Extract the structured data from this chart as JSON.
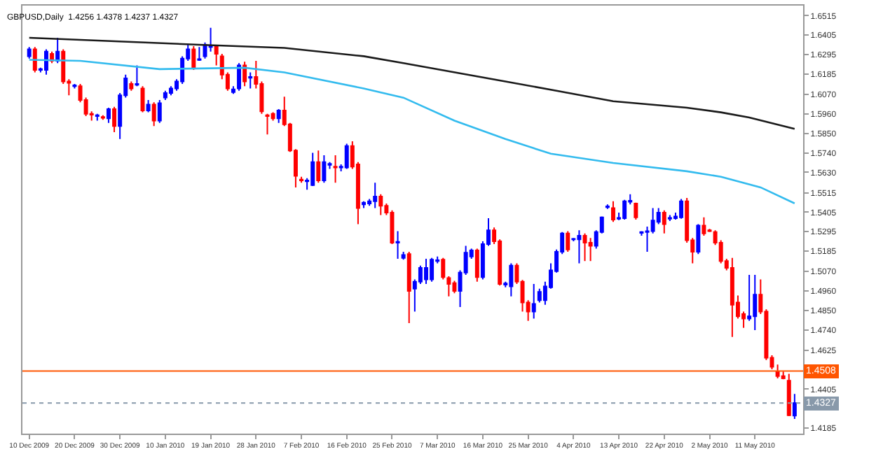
{
  "chart_data": {
    "type": "candlestick",
    "title": "GBPUSD,Daily  1.4256 1.4378 1.4237 1.4327",
    "categories": [
      "10 Dec 2009",
      null,
      null,
      null,
      null,
      null,
      null,
      null,
      "20 Dec 2009",
      null,
      null,
      null,
      null,
      null,
      null,
      null,
      "30 Dec 2009",
      null,
      null,
      null,
      null,
      null,
      null,
      null,
      "10 Jan 2010",
      null,
      null,
      null,
      null,
      null,
      null,
      null,
      "19 Jan 2010",
      null,
      null,
      null,
      null,
      null,
      null,
      null,
      "28 Jan 2010",
      null,
      null,
      null,
      null,
      null,
      null,
      null,
      "7 Feb 2010",
      null,
      null,
      null,
      null,
      null,
      null,
      null,
      "16 Feb 2010",
      null,
      null,
      null,
      null,
      null,
      null,
      null,
      "25 Feb 2010",
      null,
      null,
      null,
      null,
      null,
      null,
      null,
      "7 Mar 2010",
      null,
      null,
      null,
      null,
      null,
      null,
      null,
      "16 Mar 2010",
      null,
      null,
      null,
      null,
      null,
      null,
      null,
      "25 Mar 2010",
      null,
      null,
      null,
      null,
      null,
      null,
      null,
      "4 Apr 2010",
      null,
      null,
      null,
      null,
      null,
      null,
      null,
      "13 Apr 2010",
      null,
      null,
      null,
      null,
      null,
      null,
      null,
      "22 Apr 2010",
      null,
      null,
      null,
      null,
      null,
      null,
      null,
      "2 May 2010",
      null,
      null,
      null,
      null,
      null,
      null,
      null,
      "11 May 2010",
      null,
      null,
      null,
      null,
      null,
      null,
      null
    ],
    "ohlc": [
      [
        1.6286,
        1.6338,
        1.6273,
        1.6325
      ],
      [
        1.6325,
        1.6338,
        1.6195,
        1.6208
      ],
      [
        1.6208,
        1.6221,
        1.6195,
        1.6213
      ],
      [
        1.6208,
        1.6325,
        1.6182,
        1.6312
      ],
      [
        1.6299,
        1.6312,
        1.6247,
        1.626
      ],
      [
        1.626,
        1.639,
        1.6247,
        1.6312
      ],
      [
        1.6312,
        1.6325,
        1.613,
        1.6143
      ],
      [
        1.6143,
        1.6156,
        1.6065,
        1.6135
      ],
      [
        1.6117,
        1.613,
        1.6104,
        1.6122
      ],
      [
        1.6117,
        1.613,
        1.6026,
        1.6039
      ],
      [
        1.6039,
        1.6052,
        1.5948,
        1.5961
      ],
      [
        1.5961,
        1.5974,
        1.5922,
        1.5956
      ],
      [
        1.5948,
        1.5961,
        1.5922,
        1.5953
      ],
      [
        1.5943,
        1.5953,
        1.5927,
        1.5938
      ],
      [
        1.5935,
        1.5995,
        1.5909,
        1.5987
      ],
      [
        1.5987,
        1.6,
        1.5857,
        1.5891
      ],
      [
        1.5891,
        1.6078,
        1.5818,
        1.6065
      ],
      [
        1.6065,
        1.6182,
        1.6052,
        1.6161
      ],
      [
        1.613,
        1.6143,
        1.6091,
        1.6104
      ],
      [
        1.6125,
        1.6234,
        1.6117,
        1.613
      ],
      [
        1.6104,
        1.6117,
        1.5969,
        1.5979
      ],
      [
        1.5979,
        1.6039,
        1.5969,
        1.6013
      ],
      [
        1.6013,
        1.6026,
        1.5891,
        1.5922
      ],
      [
        1.5922,
        1.6039,
        1.5909,
        1.6021
      ],
      [
        1.6052,
        1.6091,
        1.6039,
        1.6078
      ],
      [
        1.6078,
        1.6117,
        1.6065,
        1.6104
      ],
      [
        1.6104,
        1.6156,
        1.6091,
        1.6143
      ],
      [
        1.6143,
        1.6286,
        1.613,
        1.6273
      ],
      [
        1.6273,
        1.6351,
        1.626,
        1.6325
      ],
      [
        1.6325,
        1.6343,
        1.6208,
        1.6221
      ],
      [
        1.6265,
        1.6338,
        1.626,
        1.627
      ],
      [
        1.6286,
        1.6364,
        1.6273,
        1.6351
      ],
      [
        1.6338,
        1.6447,
        1.6312,
        1.6343
      ],
      [
        1.6343,
        1.6351,
        1.6234,
        1.6299
      ],
      [
        1.6286,
        1.6299,
        1.6156,
        1.6182
      ],
      [
        1.6182,
        1.6195,
        1.6091,
        1.6104
      ],
      [
        1.6083,
        1.6117,
        1.6073,
        1.6099
      ],
      [
        1.6104,
        1.6247,
        1.6091,
        1.6234
      ],
      [
        1.6234,
        1.6255,
        1.6117,
        1.6143
      ],
      [
        1.6164,
        1.6195,
        1.6104,
        1.6169
      ],
      [
        1.6169,
        1.626,
        1.6104,
        1.613
      ],
      [
        1.613,
        1.6143,
        1.5961,
        1.5974
      ],
      [
        1.5953,
        1.5961,
        1.5844,
        1.5948
      ],
      [
        1.5961,
        1.5969,
        1.5922,
        1.5935
      ],
      [
        1.5935,
        1.5987,
        1.5909,
        1.5979
      ],
      [
        1.5979,
        1.6057,
        1.5891,
        1.5901
      ],
      [
        1.5901,
        1.5909,
        1.5745,
        1.5753
      ],
      [
        1.5753,
        1.5761,
        1.5545,
        1.561
      ],
      [
        1.5589,
        1.5605,
        1.5571,
        1.5584
      ],
      [
        1.5579,
        1.5597,
        1.5532,
        1.5584
      ],
      [
        1.5558,
        1.574,
        1.5553,
        1.5688
      ],
      [
        1.5688,
        1.5753,
        1.5571,
        1.5584
      ],
      [
        1.5584,
        1.5727,
        1.5571,
        1.5688
      ],
      [
        1.5672,
        1.5688,
        1.5649,
        1.5678
      ],
      [
        1.5662,
        1.5727,
        1.5571,
        1.5657
      ],
      [
        1.5657,
        1.5675,
        1.5636,
        1.5662
      ],
      [
        1.5657,
        1.5792,
        1.5649,
        1.5779
      ],
      [
        1.5779,
        1.5805,
        1.5649,
        1.5662
      ],
      [
        1.5675,
        1.5688,
        1.5337,
        1.5428
      ],
      [
        1.5449,
        1.5467,
        1.5428,
        1.5459
      ],
      [
        1.5454,
        1.548,
        1.5441,
        1.5467
      ],
      [
        1.5467,
        1.5571,
        1.5428,
        1.5493
      ],
      [
        1.5493,
        1.5506,
        1.5389,
        1.5441
      ],
      [
        1.5441,
        1.5454,
        1.5389,
        1.5402
      ],
      [
        1.5402,
        1.5415,
        1.5225,
        1.5233
      ],
      [
        1.5233,
        1.5298,
        1.5142,
        1.5238
      ],
      [
        1.5147,
        1.5181,
        1.5137,
        1.5163
      ],
      [
        1.5168,
        1.5181,
        1.4778,
        1.496
      ],
      [
        1.4973,
        1.5025,
        1.4843,
        1.5012
      ],
      [
        1.5012,
        1.5103,
        1.4999,
        1.509
      ],
      [
        1.5025,
        1.5142,
        1.4999,
        1.509
      ],
      [
        1.5025,
        1.5147,
        1.5012,
        1.5137
      ],
      [
        1.5129,
        1.5155,
        1.5116,
        1.5134
      ],
      [
        1.5137,
        1.5147,
        1.5025,
        1.5038
      ],
      [
        1.5033,
        1.5043,
        1.4929,
        1.4999
      ],
      [
        1.5004,
        1.5017,
        1.4947,
        1.496
      ],
      [
        1.496,
        1.5077,
        1.4869,
        1.5064
      ],
      [
        1.5064,
        1.5215,
        1.5051,
        1.5176
      ],
      [
        1.5155,
        1.5199,
        1.5142,
        1.5189
      ],
      [
        1.5189,
        1.5199,
        1.5012,
        1.5038
      ],
      [
        1.5038,
        1.5241,
        1.5025,
        1.5225
      ],
      [
        1.5225,
        1.5371,
        1.5215,
        1.5303
      ],
      [
        1.5303,
        1.5319,
        1.5225,
        1.5241
      ],
      [
        1.5241,
        1.5251,
        1.4991,
        1.4999
      ],
      [
        1.4996,
        1.5012,
        1.4981,
        1.5002
      ],
      [
        1.4986,
        1.5116,
        1.4929,
        1.5103
      ],
      [
        1.5103,
        1.5116,
        1.4999,
        1.5012
      ],
      [
        1.5012,
        1.5022,
        1.4843,
        1.4895
      ],
      [
        1.4895,
        1.4908,
        1.4791,
        1.4843
      ],
      [
        1.4843,
        1.4999,
        1.4804,
        1.4887
      ],
      [
        1.4908,
        1.4973,
        1.4895,
        1.4955
      ],
      [
        1.4908,
        1.5012,
        1.4882,
        1.4986
      ],
      [
        1.4981,
        1.5116,
        1.4973,
        1.5077
      ],
      [
        1.5072,
        1.5194,
        1.5064,
        1.5181
      ],
      [
        1.5181,
        1.5293,
        1.5168,
        1.5285
      ],
      [
        1.5285,
        1.5298,
        1.5181,
        1.5194
      ],
      [
        1.5251,
        1.5259,
        1.5241,
        1.5254
      ],
      [
        1.5251,
        1.5303,
        1.5116,
        1.5272
      ],
      [
        1.5272,
        1.5285,
        1.5129,
        1.5233
      ],
      [
        1.5233,
        1.5259,
        1.5129,
        1.5215
      ],
      [
        1.5215,
        1.5303,
        1.5199,
        1.5293
      ],
      [
        1.5293,
        1.5381,
        1.5285,
        1.5376
      ],
      [
        1.5433,
        1.5449,
        1.5423,
        1.5438
      ],
      [
        1.5428,
        1.5467,
        1.535,
        1.5363
      ],
      [
        1.5368,
        1.5402,
        1.536,
        1.5373
      ],
      [
        1.5371,
        1.5475,
        1.5363,
        1.5467
      ],
      [
        1.5464,
        1.5506,
        1.5449,
        1.547
      ],
      [
        1.5454,
        1.5459,
        1.5363,
        1.5376
      ],
      [
        1.5288,
        1.5298,
        1.5272,
        1.5293
      ],
      [
        1.5293,
        1.5324,
        1.5181,
        1.5298
      ],
      [
        1.5298,
        1.5428,
        1.5285,
        1.5358
      ],
      [
        1.535,
        1.5428,
        1.5337,
        1.5402
      ],
      [
        1.5402,
        1.5415,
        1.5285,
        1.5337
      ],
      [
        1.5368,
        1.5389,
        1.5355,
        1.5373
      ],
      [
        1.5371,
        1.5402,
        1.5363,
        1.5381
      ],
      [
        1.5376,
        1.548,
        1.5368,
        1.5467
      ],
      [
        1.5467,
        1.5485,
        1.5233,
        1.5246
      ],
      [
        1.5246,
        1.5259,
        1.5116,
        1.5181
      ],
      [
        1.5181,
        1.5337,
        1.5168,
        1.5329
      ],
      [
        1.5329,
        1.5376,
        1.5272,
        1.5285
      ],
      [
        1.5303,
        1.5311,
        1.5293,
        1.5298
      ],
      [
        1.5293,
        1.5303,
        1.522,
        1.5233
      ],
      [
        1.5233,
        1.5246,
        1.5116,
        1.5129
      ],
      [
        1.5129,
        1.5142,
        1.5077,
        1.509
      ],
      [
        1.509,
        1.5147,
        1.47,
        1.4882
      ],
      [
        1.4895,
        1.4934,
        1.4804,
        1.4817
      ],
      [
        1.483,
        1.4843,
        1.4752,
        1.4804
      ],
      [
        1.4804,
        1.5051,
        1.4791,
        1.4817
      ],
      [
        1.4817,
        1.5051,
        1.4739,
        1.4939
      ],
      [
        1.4939,
        1.5025,
        1.483,
        1.4843
      ],
      [
        1.4843,
        1.4856,
        1.457,
        1.4583
      ],
      [
        1.4583,
        1.4596,
        1.4518,
        1.4531
      ],
      [
        1.4505,
        1.4544,
        1.4466,
        1.4479
      ],
      [
        1.4479,
        1.4505,
        1.4461,
        1.4466
      ],
      [
        1.4453,
        1.4492,
        1.4253,
        1.4258
      ],
      [
        1.4256,
        1.4378,
        1.4237,
        1.4327
      ]
    ],
    "colors": [
      "#0000ff",
      "#ff0000",
      "#0000ff",
      "#0000ff",
      "#ff0000",
      "#0000ff",
      "#ff0000",
      "#ff0000",
      "#0000ff",
      "#ff0000",
      "#ff0000",
      "#ff0000",
      "#0000ff",
      "#ff0000",
      "#0000ff",
      "#ff0000",
      "#0000ff",
      "#0000ff",
      "#ff0000",
      "#0000ff",
      "#ff0000",
      "#0000ff",
      "#ff0000",
      "#0000ff",
      "#0000ff",
      "#0000ff",
      "#0000ff",
      "#0000ff",
      "#0000ff",
      "#ff0000",
      "#0000ff",
      "#0000ff",
      "#0000ff",
      "#ff0000",
      "#ff0000",
      "#ff0000",
      "#0000ff",
      "#0000ff",
      "#ff0000",
      "#0000ff",
      "#ff0000",
      "#ff0000",
      "#ff0000",
      "#ff0000",
      "#0000ff",
      "#ff0000",
      "#ff0000",
      "#ff0000",
      "#ff0000",
      "#0000ff",
      "#0000ff",
      "#ff0000",
      "#0000ff",
      "#0000ff",
      "#ff0000",
      "#0000ff",
      "#0000ff",
      "#ff0000",
      "#ff0000",
      "#0000ff",
      "#0000ff",
      "#0000ff",
      "#ff0000",
      "#ff0000",
      "#ff0000",
      "#0000ff",
      "#0000ff",
      "#ff0000",
      "#0000ff",
      "#0000ff",
      "#0000ff",
      "#0000ff",
      "#0000ff",
      "#ff0000",
      "#ff0000",
      "#ff0000",
      "#0000ff",
      "#0000ff",
      "#0000ff",
      "#ff0000",
      "#0000ff",
      "#0000ff",
      "#ff0000",
      "#ff0000",
      "#0000ff",
      "#0000ff",
      "#ff0000",
      "#ff0000",
      "#ff0000",
      "#0000ff",
      "#0000ff",
      "#0000ff",
      "#0000ff",
      "#0000ff",
      "#0000ff",
      "#ff0000",
      "#0000ff",
      "#0000ff",
      "#ff0000",
      "#ff0000",
      "#0000ff",
      "#0000ff",
      "#0000ff",
      "#ff0000",
      "#0000ff",
      "#0000ff",
      "#0000ff",
      "#ff0000",
      "#0000ff",
      "#0000ff",
      "#0000ff",
      "#0000ff",
      "#ff0000",
      "#0000ff",
      "#0000ff",
      "#0000ff",
      "#ff0000",
      "#ff0000",
      "#0000ff",
      "#ff0000",
      "#ff0000",
      "#ff0000",
      "#ff0000",
      "#ff0000",
      "#ff0000",
      "#ff0000",
      "#ff0000",
      "#0000ff",
      "#0000ff",
      "#ff0000",
      "#ff0000",
      "#ff0000",
      "#ff0000",
      "#ff0000",
      "#ff0000",
      "#0000ff"
    ],
    "series": [
      {
        "type": "line",
        "color": "#1a1a1a",
        "values": [
          1.639,
          null,
          null,
          null,
          null,
          null,
          null,
          null,
          null,
          null,
          null,
          null,
          null,
          null,
          null,
          null,
          null,
          null,
          null,
          null,
          null,
          null,
          null,
          null,
          null,
          null,
          null,
          null,
          null,
          null,
          1.6351,
          null,
          null,
          null,
          null,
          null,
          null,
          null,
          null,
          null,
          null,
          null,
          null,
          null,
          null,
          1.6333,
          null,
          null,
          null,
          null,
          null,
          null,
          null,
          null,
          null,
          null,
          null,
          null,
          null,
          1.6286,
          null,
          null,
          null,
          null,
          null,
          null,
          1.6247,
          null,
          null,
          null,
          null,
          null,
          null,
          null,
          null,
          null,
          null,
          null,
          null,
          null,
          null,
          null,
          null,
          null,
          1.6143,
          null,
          null,
          null,
          null,
          null,
          null,
          null,
          null,
          1.6091,
          null,
          null,
          null,
          null,
          null,
          null,
          null,
          null,
          null,
          1.6032,
          null,
          null,
          null,
          null,
          null,
          null,
          null,
          null,
          null,
          null,
          null,
          null,
          1.5995,
          null,
          null,
          null,
          null,
          null,
          1.5969,
          null,
          null,
          null,
          null,
          1.594,
          null,
          null,
          null,
          null,
          null,
          null,
          null,
          1.5876
        ]
      },
      {
        "type": "line",
        "color": "#33bbee",
        "values": [
          1.6266,
          null,
          null,
          null,
          null,
          null,
          null,
          null,
          null,
          1.626,
          null,
          null,
          null,
          null,
          null,
          null,
          null,
          null,
          null,
          null,
          null,
          null,
          null,
          1.6213,
          null,
          null,
          null,
          null,
          null,
          null,
          null,
          null,
          null,
          null,
          null,
          null,
          null,
          null,
          1.6221,
          null,
          null,
          null,
          null,
          null,
          null,
          1.6195,
          null,
          null,
          null,
          null,
          null,
          null,
          null,
          null,
          null,
          null,
          null,
          null,
          null,
          1.6104,
          null,
          null,
          null,
          null,
          null,
          null,
          1.6052,
          null,
          null,
          null,
          null,
          null,
          null,
          null,
          null,
          1.5922,
          null,
          null,
          null,
          null,
          null,
          null,
          null,
          null,
          1.5818,
          null,
          null,
          null,
          null,
          null,
          null,
          null,
          1.5735,
          null,
          null,
          null,
          null,
          null,
          null,
          null,
          null,
          null,
          null,
          1.5683,
          null,
          null,
          null,
          null,
          null,
          null,
          null,
          null,
          null,
          null,
          null,
          null,
          1.5636,
          null,
          null,
          null,
          null,
          null,
          1.5605,
          null,
          null,
          null,
          null,
          null,
          null,
          1.5545,
          null,
          null,
          null,
          null,
          null,
          1.5455
        ]
      }
    ],
    "ylim": [
      1.4154,
      1.6572
    ],
    "yticks": [
      1.6515,
      1.6405,
      1.6295,
      1.6185,
      {
        "value": 1.607,
        "label": "1.6070"
      },
      {
        "value": 1.596,
        "label": "1.5960"
      },
      {
        "value": 1.585,
        "label": "1.5850"
      },
      {
        "value": 1.574,
        "label": "1.5740"
      },
      {
        "value": 1.563,
        "label": "1.5630"
      },
      1.5515,
      1.5405,
      1.5295,
      1.5185,
      {
        "value": 1.507,
        "label": "1.5070"
      },
      {
        "value": 1.496,
        "label": "1.4960"
      },
      {
        "value": 1.485,
        "label": "1.4850"
      },
      {
        "value": 1.474,
        "label": "1.4740"
      },
      1.4625,
      1.4405,
      1.4185
    ],
    "ref_lines": [
      {
        "axis": "y",
        "value": 1.4508,
        "label": "1.4508",
        "color": "#ff5500",
        "line_style": "solid"
      },
      {
        "axis": "y",
        "value": 1.4327,
        "label": "1.4327",
        "color": "#8899aa",
        "line_style": "dotted"
      }
    ],
    "grid": false
  }
}
